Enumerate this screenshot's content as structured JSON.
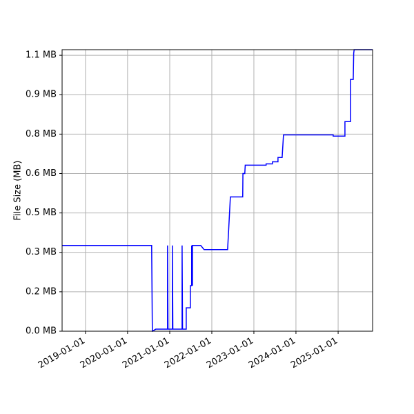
{
  "chart_data": {
    "type": "line",
    "ylabel": "File Size (MB)",
    "x": [
      "2018-06-12",
      "2020-07-28",
      "2020-08-03",
      "2020-09-02",
      "2020-12-13",
      "2020-12-13",
      "2020-12-17",
      "2021-01-24",
      "2021-01-24",
      "2021-01-28",
      "2021-04-18",
      "2021-04-18",
      "2021-04-22",
      "2021-05-24",
      "2021-05-24",
      "2021-06-29",
      "2021-06-29",
      "2021-07-10",
      "2021-07-10",
      "2021-07-17",
      "2021-07-17",
      "2021-09-27",
      "2021-10-26",
      "2022-05-18",
      "2022-06-11",
      "2022-09-26",
      "2022-09-28",
      "2022-10-14",
      "2022-10-18",
      "2023-04-17",
      "2023-04-17",
      "2023-06-11",
      "2023-06-11",
      "2023-07-29",
      "2023-07-29",
      "2023-09-03",
      "2023-09-15",
      "2024-11-19",
      "2024-11-19",
      "2025-03-01",
      "2025-03-01",
      "2025-04-18",
      "2025-04-18",
      "2025-05-12",
      "2025-05-16",
      "2025-05-20",
      "2025-10-27"
    ],
    "series": [
      {
        "color": "#0000ff",
        "values": [
          0.337,
          0.337,
          0.0,
          0.008,
          0.008,
          0.337,
          0.008,
          0.008,
          0.337,
          0.008,
          0.008,
          0.337,
          0.008,
          0.008,
          0.092,
          0.092,
          0.179,
          0.179,
          0.337,
          0.179,
          0.337,
          0.337,
          0.321,
          0.321,
          0.528,
          0.528,
          0.62,
          0.62,
          0.653,
          0.653,
          0.658,
          0.658,
          0.666,
          0.666,
          0.683,
          0.683,
          0.772,
          0.772,
          0.767,
          0.767,
          0.824,
          0.824,
          0.99,
          0.99,
          1.093,
          1.107,
          1.107
        ]
      }
    ],
    "xlim": [
      "2018-06-12",
      "2025-10-27"
    ],
    "xticks": [
      "2019-01-01",
      "2020-01-01",
      "2021-01-01",
      "2022-01-01",
      "2023-01-01",
      "2024-01-01",
      "2025-01-01"
    ],
    "ylim": [
      0,
      1.107
    ],
    "yticks": [
      {
        "value": 0,
        "label": "0.0 MB"
      },
      {
        "value": 0.155,
        "label": "0.2 MB"
      },
      {
        "value": 0.31,
        "label": "0.3 MB"
      },
      {
        "value": 0.465,
        "label": "0.5 MB"
      },
      {
        "value": 0.62,
        "label": "0.6 MB"
      },
      {
        "value": 0.775,
        "label": "0.8 MB"
      },
      {
        "value": 0.93,
        "label": "0.9 MB"
      },
      {
        "value": 1.085,
        "label": "1.1 MB"
      }
    ],
    "grid": true
  }
}
